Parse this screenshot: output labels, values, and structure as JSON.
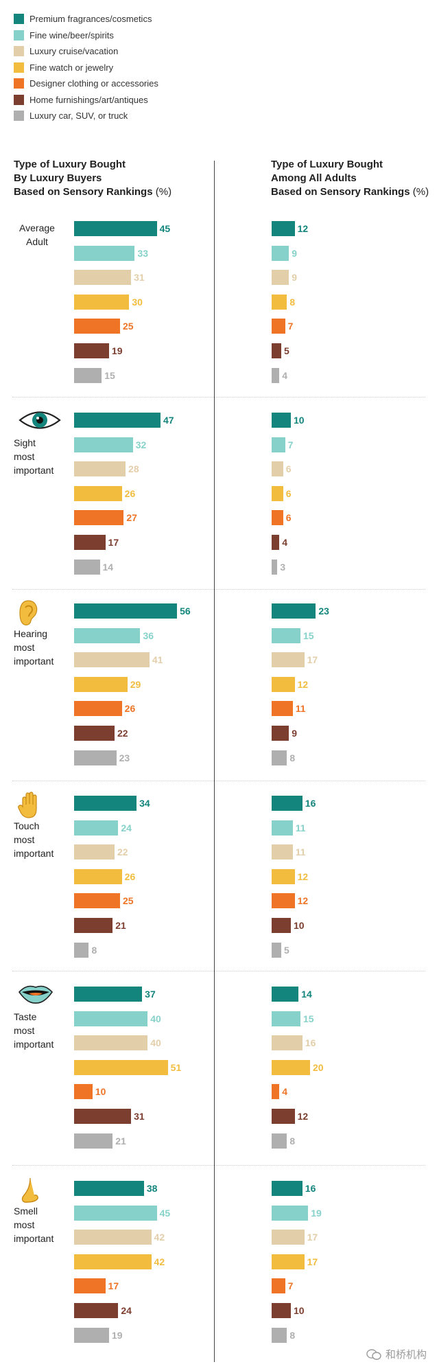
{
  "legend": [
    {
      "label": "Premium fragrances/cosmetics",
      "color": "#13857d"
    },
    {
      "label": "Fine wine/beer/spirits",
      "color": "#86d2cb"
    },
    {
      "label": "Luxury cruise/vacation",
      "color": "#e3ceaa"
    },
    {
      "label": "Fine watch or jewelry",
      "color": "#f2bc3f"
    },
    {
      "label": "Designer clothing or accessories",
      "color": "#ef7426"
    },
    {
      "label": "Home furnishings/art/antiques",
      "color": "#7c3e2f"
    },
    {
      "label": "Luxury car, SUV, or truck",
      "color": "#afafaf"
    }
  ],
  "columns": {
    "left": {
      "line1": "Type of Luxury Bought",
      "line2": "By Luxury Buyers",
      "line3": "Based on Sensory Rankings",
      "unit": "(%)"
    },
    "right": {
      "line1": "Type of Luxury Bought",
      "line2": "Among All Adults",
      "line3": "Based on Sensory Rankings",
      "unit": "(%)"
    }
  },
  "watermark": "和桥机构",
  "chart_data": {
    "type": "bar",
    "orientation": "horizontal",
    "categories": [
      "Premium fragrances/cosmetics",
      "Fine wine/beer/spirits",
      "Luxury cruise/vacation",
      "Fine watch or jewelry",
      "Designer clothing or accessories",
      "Home furnishings/art/antiques",
      "Luxury car, SUV, or truck"
    ],
    "groups": [
      {
        "label": [
          "Average",
          "Adult"
        ],
        "icon": "none",
        "luxury_buyers": [
          45,
          33,
          31,
          30,
          25,
          19,
          15
        ],
        "all_adults": [
          12,
          9,
          9,
          8,
          7,
          5,
          4
        ]
      },
      {
        "label": [
          "Sight",
          "most",
          "important"
        ],
        "icon": "eye-icon",
        "luxury_buyers": [
          47,
          32,
          28,
          26,
          27,
          17,
          14
        ],
        "all_adults": [
          10,
          7,
          6,
          6,
          6,
          4,
          3
        ]
      },
      {
        "label": [
          "Hearing",
          "most",
          "important"
        ],
        "icon": "ear-icon",
        "luxury_buyers": [
          56,
          36,
          41,
          29,
          26,
          22,
          23
        ],
        "all_adults": [
          23,
          15,
          17,
          12,
          11,
          9,
          8
        ]
      },
      {
        "label": [
          "Touch",
          "most",
          "important"
        ],
        "icon": "hand-icon",
        "luxury_buyers": [
          34,
          24,
          22,
          26,
          25,
          21,
          8
        ],
        "all_adults": [
          16,
          11,
          11,
          12,
          12,
          10,
          5
        ]
      },
      {
        "label": [
          "Taste",
          "most",
          "important"
        ],
        "icon": "mouth-icon",
        "luxury_buyers": [
          37,
          40,
          40,
          51,
          10,
          31,
          21
        ],
        "all_adults": [
          14,
          15,
          16,
          20,
          4,
          12,
          8
        ]
      },
      {
        "label": [
          "Smell",
          "most",
          "important"
        ],
        "icon": "nose-icon",
        "luxury_buyers": [
          38,
          45,
          42,
          42,
          17,
          24,
          19
        ],
        "all_adults": [
          16,
          19,
          17,
          17,
          7,
          10,
          8
        ]
      }
    ]
  }
}
